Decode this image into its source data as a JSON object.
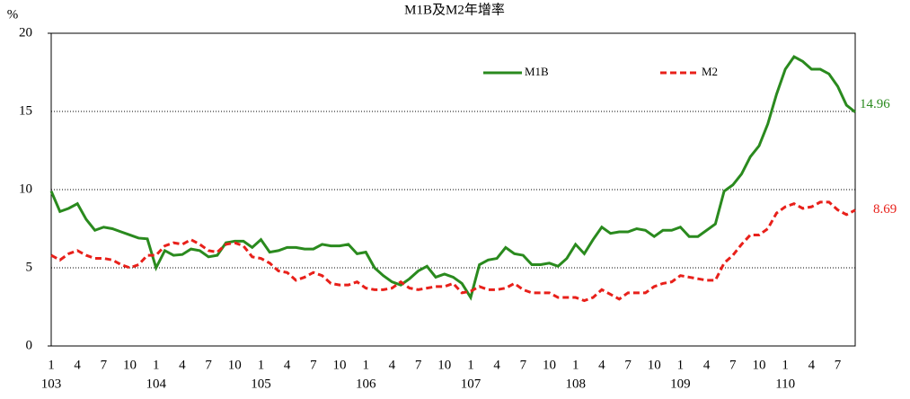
{
  "chart_data": {
    "type": "line",
    "title": "M1B及M2年增率",
    "y_unit": "%",
    "categories": [
      "1",
      null,
      null,
      "4",
      null,
      null,
      "7",
      null,
      null,
      "10",
      null,
      null,
      "1",
      null,
      null,
      "4",
      null,
      null,
      "7",
      null,
      null,
      "10",
      null,
      null,
      "1",
      null,
      null,
      "4",
      null,
      null,
      "7",
      null,
      null,
      "10",
      null,
      null,
      "1",
      null,
      null,
      "4",
      null,
      null,
      "7",
      null,
      null,
      "10",
      null,
      null,
      "1",
      null,
      null,
      "4",
      null,
      null,
      "7",
      null,
      null,
      "10",
      null,
      null,
      "1",
      null,
      null,
      "4",
      null,
      null,
      "7",
      null,
      null,
      "10",
      null,
      null,
      "1",
      null,
      null,
      "4",
      null,
      null,
      "7",
      null,
      null,
      "10",
      null,
      null,
      "1",
      null,
      null,
      "4",
      null,
      null,
      "7",
      null,
      null
    ],
    "category_groups": [
      "103",
      "104",
      "105",
      "106",
      "107",
      "108",
      "109",
      "110"
    ],
    "series": [
      {
        "name": "M1B",
        "color": "#2a8a1e",
        "dash": false,
        "values": [
          9.9,
          8.6,
          8.8,
          9.1,
          8.1,
          7.4,
          7.6,
          7.5,
          7.3,
          7.1,
          6.9,
          6.85,
          5.0,
          6.1,
          5.8,
          5.85,
          6.2,
          6.1,
          5.7,
          5.8,
          6.6,
          6.7,
          6.7,
          6.3,
          6.8,
          6.0,
          6.1,
          6.3,
          6.3,
          6.2,
          6.2,
          6.5,
          6.4,
          6.4,
          6.5,
          5.9,
          6.0,
          5.0,
          4.5,
          4.1,
          3.9,
          4.3,
          4.8,
          5.1,
          4.4,
          4.6,
          4.4,
          4.0,
          3.1,
          5.2,
          5.5,
          5.6,
          6.3,
          5.9,
          5.8,
          5.2,
          5.2,
          5.3,
          5.1,
          5.6,
          6.5,
          5.9,
          6.8,
          7.6,
          7.2,
          7.3,
          7.3,
          7.5,
          7.4,
          7.0,
          7.4,
          7.4,
          7.6,
          7.0,
          7.0,
          7.4,
          7.8,
          9.9,
          10.3,
          11.0,
          12.1,
          12.8,
          14.2,
          16.1,
          17.7,
          18.5,
          18.2,
          17.7,
          17.7,
          17.4,
          16.6,
          15.4,
          14.96
        ]
      },
      {
        "name": "M2",
        "color": "#e8201a",
        "dash": true,
        "values": [
          5.8,
          5.5,
          5.9,
          6.1,
          5.8,
          5.6,
          5.6,
          5.5,
          5.2,
          5.0,
          5.2,
          5.8,
          5.8,
          6.4,
          6.6,
          6.5,
          6.8,
          6.5,
          6.1,
          6.0,
          6.5,
          6.6,
          6.4,
          5.7,
          5.6,
          5.3,
          4.8,
          4.7,
          4.2,
          4.4,
          4.7,
          4.5,
          4.0,
          3.9,
          3.9,
          4.1,
          3.7,
          3.6,
          3.6,
          3.7,
          4.1,
          3.7,
          3.6,
          3.7,
          3.8,
          3.8,
          4.0,
          3.4,
          3.5,
          3.8,
          3.6,
          3.6,
          3.7,
          4.0,
          3.6,
          3.4,
          3.4,
          3.4,
          3.1,
          3.1,
          3.1,
          2.9,
          3.1,
          3.6,
          3.3,
          3.0,
          3.4,
          3.4,
          3.4,
          3.8,
          4.0,
          4.1,
          4.5,
          4.4,
          4.3,
          4.2,
          4.2,
          5.3,
          5.8,
          6.5,
          7.1,
          7.1,
          7.5,
          8.5,
          8.9,
          9.1,
          8.8,
          8.9,
          9.2,
          9.2,
          8.7,
          8.4,
          8.69
        ]
      }
    ],
    "ylim": [
      0,
      20
    ],
    "yticks": [
      0,
      5,
      10,
      15,
      20
    ],
    "grid": true,
    "legend": "top"
  }
}
